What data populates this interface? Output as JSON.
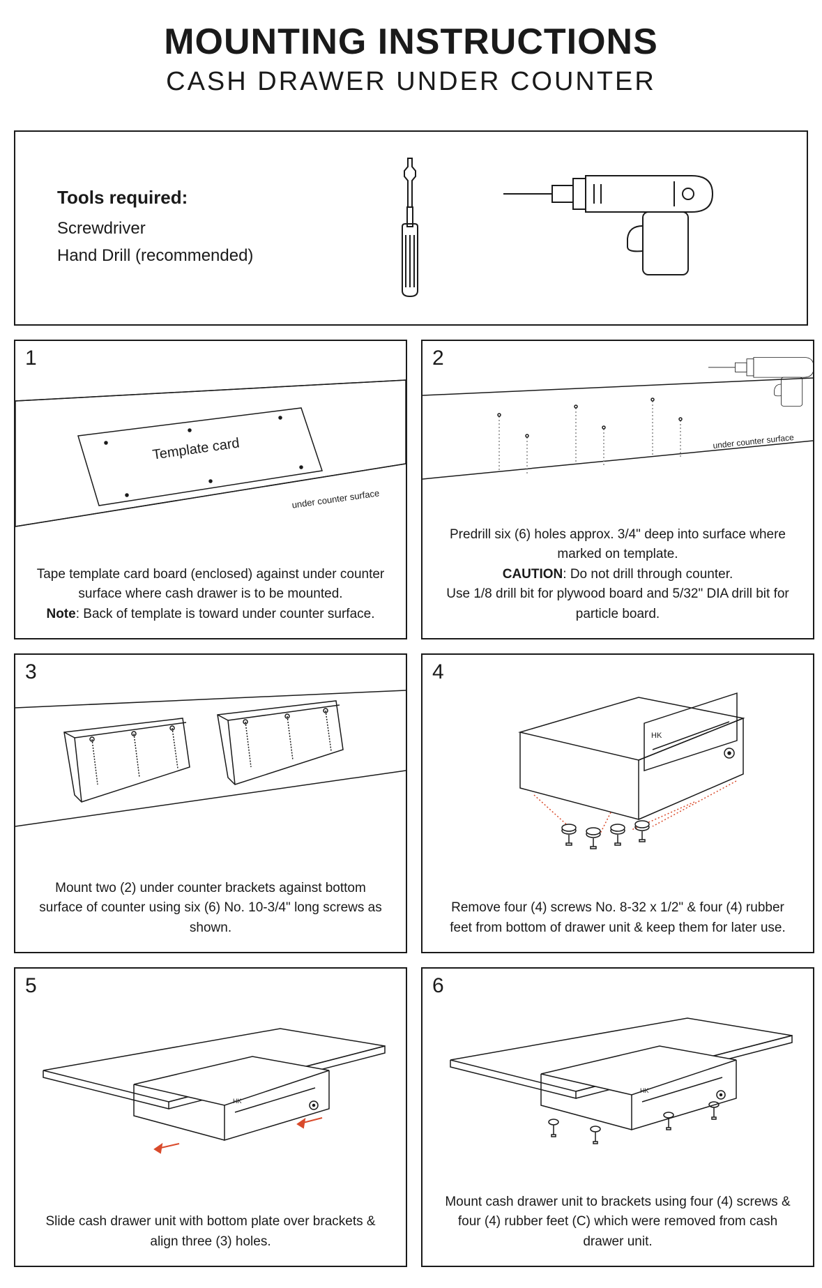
{
  "header": {
    "title": "MOUNTING INSTRUCTIONS",
    "subtitle": "CASH DRAWER UNDER COUNTER"
  },
  "tools": {
    "heading": "Tools required:",
    "items": [
      "Screwdriver",
      "Hand Drill (recommended)"
    ]
  },
  "steps": [
    {
      "num": "1",
      "label_in_art": "Template card",
      "sublabel_in_art": "under counter surface",
      "caption_parts": [
        {
          "text": "Tape template card board (enclosed) against under counter surface where cash drawer is to be mounted.",
          "bold": false,
          "br": true
        },
        {
          "text": "Note",
          "bold": true
        },
        {
          "text": ": Back of template is toward under counter surface.",
          "bold": false
        }
      ]
    },
    {
      "num": "2",
      "sublabel_in_art": "under counter surface",
      "caption_parts": [
        {
          "text": "Predrill six (6) holes approx. 3/4\" deep into surface where marked on template.",
          "bold": false,
          "br": true
        },
        {
          "text": "CAUTION",
          "bold": true
        },
        {
          "text": ": Do not drill through counter.",
          "bold": false,
          "br": true
        },
        {
          "text": "Use 1/8 drill bit for plywood board and 5/32\" DIA drill bit for particle board.",
          "bold": false
        }
      ]
    },
    {
      "num": "3",
      "caption_parts": [
        {
          "text": "Mount two (2) under counter brackets against bottom surface of counter using six (6) No. 10-3/4\" long screws as shown.",
          "bold": false
        }
      ]
    },
    {
      "num": "4",
      "brand": "HK",
      "caption_parts": [
        {
          "text": "Remove four (4) screws No. 8-32 x 1/2\" & four (4) rubber feet from bottom of drawer unit & keep them for later use.",
          "bold": false
        }
      ]
    },
    {
      "num": "5",
      "brand": "HK",
      "caption_parts": [
        {
          "text": "Slide cash drawer unit with bottom plate over brackets & align three (3) holes.",
          "bold": false
        }
      ]
    },
    {
      "num": "6",
      "brand": "HK",
      "caption_parts": [
        {
          "text": "Mount cash drawer unit to brackets using four (4) screws & four (4) rubber feet (C) which were removed from cash drawer unit.",
          "bold": false
        }
      ]
    }
  ],
  "colors": {
    "stroke": "#1a1a1a",
    "dashed": "#888888",
    "accent": "#d94a2b"
  }
}
